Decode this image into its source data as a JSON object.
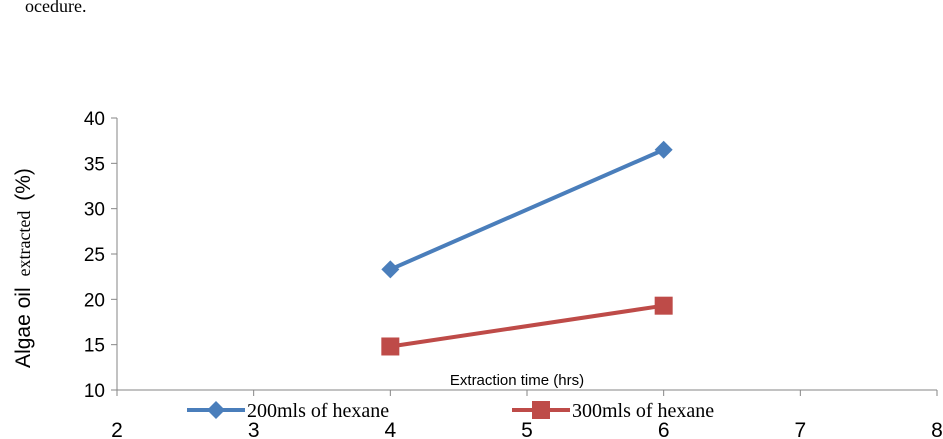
{
  "chart_data": {
    "type": "line",
    "title": "",
    "xlabel": "Extraction time (hrs)",
    "ylabel": {
      "main": "Algae oil",
      "sub": "extracted",
      "unit": "(%)"
    },
    "xlim": [
      2,
      8
    ],
    "ylim": [
      10,
      40
    ],
    "xticks": [
      "2",
      "3",
      "4",
      "5",
      "6",
      "7",
      "8"
    ],
    "yticks": [
      "10",
      "15",
      "20",
      "25",
      "30",
      "35",
      "40"
    ],
    "grid": false,
    "legend_position": "bottom",
    "series": [
      {
        "name": "200mls of hexane",
        "color": "#4a7ebb",
        "marker": "diamond",
        "x": [
          4,
          6
        ],
        "y": [
          23.3,
          36.5
        ]
      },
      {
        "name": "300mls of hexane",
        "color": "#be4b48",
        "marker": "square",
        "x": [
          4,
          6
        ],
        "y": [
          14.8,
          19.3
        ]
      }
    ]
  },
  "top_fragment": "ocedure."
}
